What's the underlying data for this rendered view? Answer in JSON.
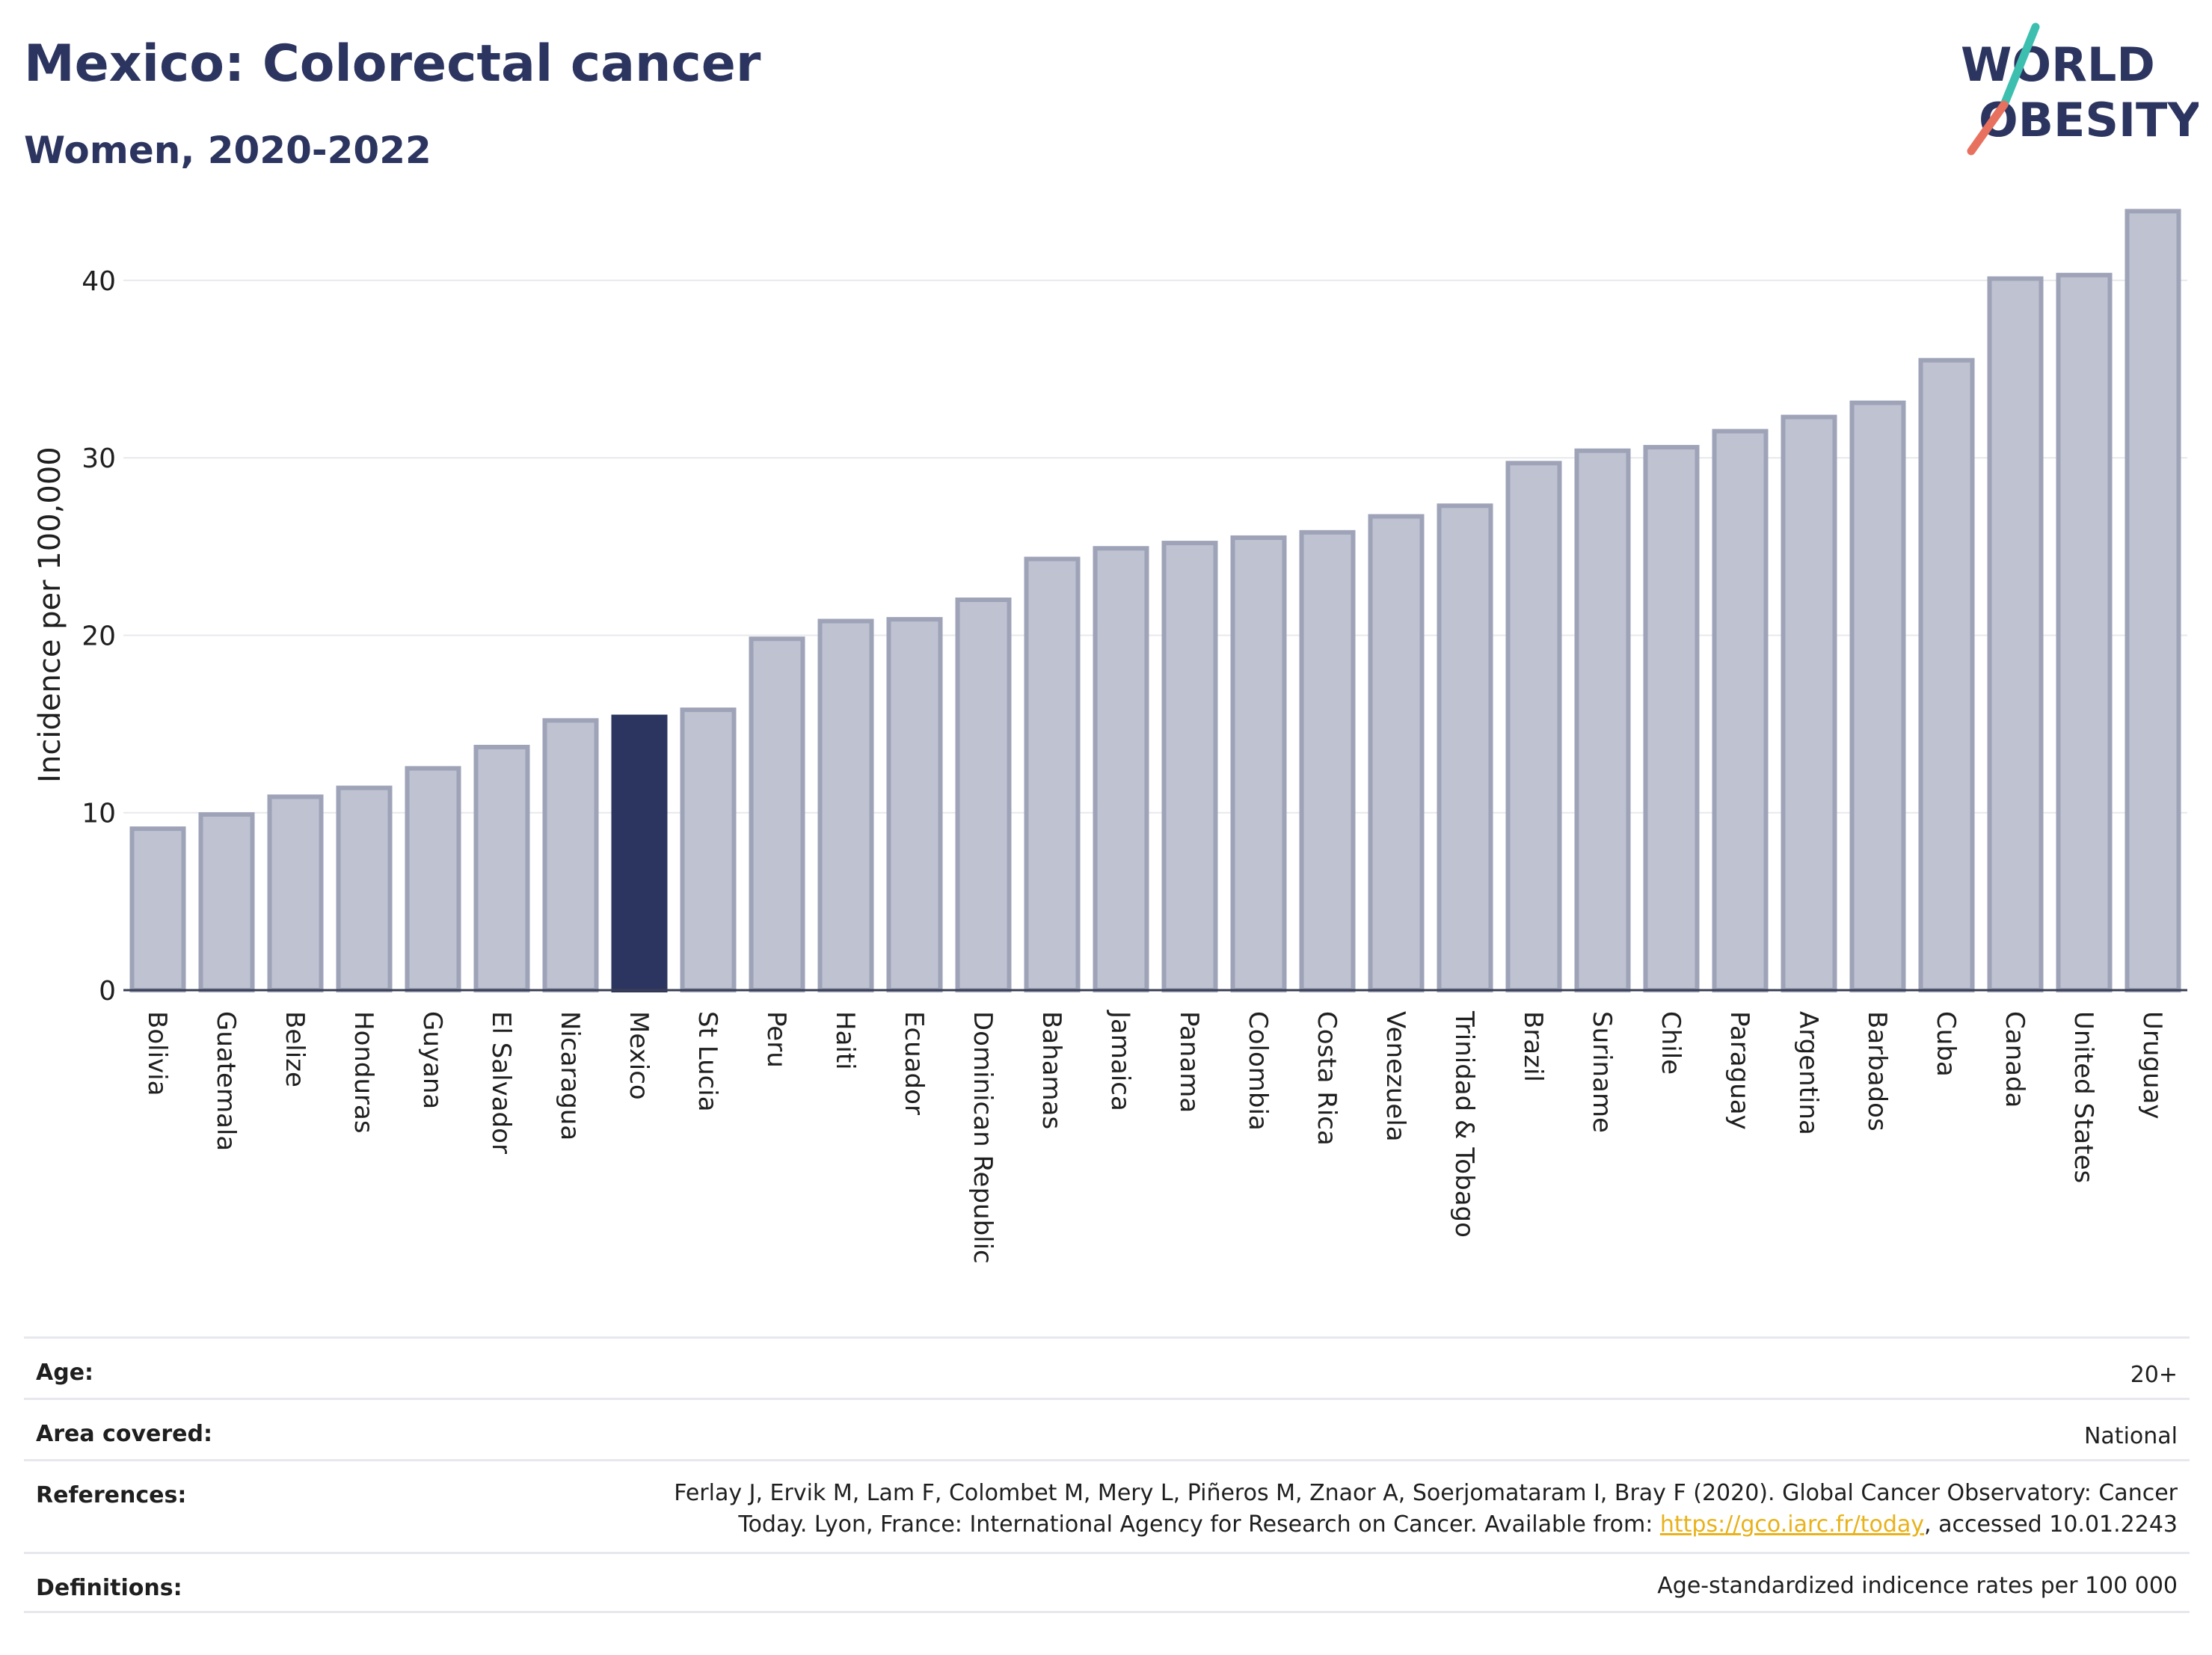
{
  "header": {
    "title": "Mexico: Colorectal cancer",
    "subtitle": "Women, 2020-2022",
    "logo_line1": "WORLD",
    "logo_line2": "OBESITY"
  },
  "colors": {
    "highlight": "#2c3560",
    "bar_fill": "#bfc2d0",
    "bar_stroke": "#9ea3b8",
    "text_dark": "#2c3560",
    "link": "#e8b21a",
    "logo_teal": "#3dbfb0",
    "logo_coral": "#e8705f"
  },
  "chart_data": {
    "type": "bar",
    "ylabel": "Incidence per 100,000",
    "xlabel": "",
    "ylim": [
      0,
      44
    ],
    "yticks": [
      0,
      10,
      20,
      30,
      40
    ],
    "grid": true,
    "highlight_category": "Mexico",
    "categories": [
      "Bolivia",
      "Guatemala",
      "Belize",
      "Honduras",
      "Guyana",
      "El Salvador",
      "Nicaragua",
      "Mexico",
      "St Lucia",
      "Peru",
      "Haiti",
      "Ecuador",
      "Dominican Republic",
      "Bahamas",
      "Jamaica",
      "Panama",
      "Colombia",
      "Costa Rica",
      "Venezuela",
      "Trinidad & Tobago",
      "Brazil",
      "Suriname",
      "Chile",
      "Paraguay",
      "Argentina",
      "Barbados",
      "Cuba",
      "Canada",
      "United States",
      "Uruguay"
    ],
    "values": [
      9.1,
      9.9,
      10.9,
      11.4,
      12.5,
      13.7,
      15.2,
      15.4,
      15.8,
      19.8,
      20.8,
      20.9,
      22.0,
      24.3,
      24.9,
      25.2,
      25.5,
      25.8,
      26.7,
      27.3,
      29.7,
      30.4,
      30.6,
      31.5,
      32.3,
      33.1,
      35.5,
      40.1,
      40.3,
      43.9
    ]
  },
  "meta": {
    "age": {
      "label": "Age:",
      "value": "20+"
    },
    "area": {
      "label": "Area covered:",
      "value": "National"
    },
    "references": {
      "label": "References:",
      "text_line1": "Ferlay J, Ervik M, Lam F, Colombet M, Mery L, Piñeros M, Znaor A, Soerjomataram I, Bray F (2020). Global Cancer Observatory: Cancer",
      "text_line2_pre": "Today. Lyon, France: International Agency for Research on Cancer. Available from: ",
      "link": "https://gco.iarc.fr/today",
      "text_line2_post": ", accessed 10.01.2243"
    },
    "definitions": {
      "label": "Definitions:",
      "value": "Age-standardized indicence rates per 100 000"
    }
  }
}
